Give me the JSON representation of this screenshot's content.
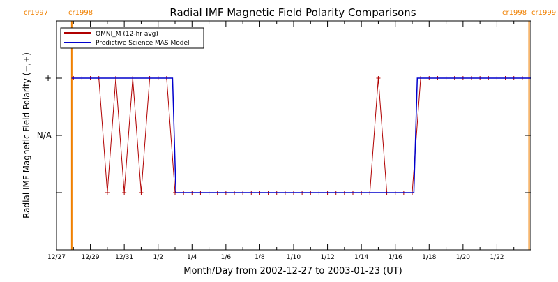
{
  "chart_data": {
    "type": "line",
    "title": "Radial IMF Magnetic Field Polarity Comparisons",
    "xlabel": "Month/Day from 2002-12-27 to 2003-01-23 (UT)",
    "ylabel": "Radial IMF Magnetic Field Polarity (−,+)",
    "x_unit": "days",
    "xlim": [
      0,
      28
    ],
    "ylim": [
      -2,
      2
    ],
    "y_ticks": [
      {
        "value": 1,
        "label": "+"
      },
      {
        "value": 0,
        "label": "N/A"
      },
      {
        "value": -1,
        "label": "–"
      }
    ],
    "x_ticks": [
      {
        "value": 0,
        "label": "12/27"
      },
      {
        "value": 2,
        "label": "12/29"
      },
      {
        "value": 4,
        "label": "12/31"
      },
      {
        "value": 6,
        "label": "1/2"
      },
      {
        "value": 8,
        "label": "1/4"
      },
      {
        "value": 10,
        "label": "1/6"
      },
      {
        "value": 12,
        "label": "1/8"
      },
      {
        "value": 14,
        "label": "1/10"
      },
      {
        "value": 16,
        "label": "1/12"
      },
      {
        "value": 18,
        "label": "1/14"
      },
      {
        "value": 20,
        "label": "1/16"
      },
      {
        "value": 22,
        "label": "1/18"
      },
      {
        "value": 24,
        "label": "1/20"
      },
      {
        "value": 26,
        "label": "1/22"
      }
    ],
    "carrington_markers": [
      {
        "x": 0.9,
        "left_label": "cr1997",
        "right_label": "cr1998"
      },
      {
        "x": 27.9,
        "left_label": "cr1998",
        "right_label": "cr1999"
      }
    ],
    "legend": {
      "position": "top-left"
    },
    "series": [
      {
        "name": "OMNI_M (12-hr avg)",
        "color": "#b00000",
        "markers": true,
        "x": [
          1.0,
          1.5,
          2.0,
          2.5,
          3.0,
          3.5,
          4.0,
          4.5,
          5.0,
          5.5,
          6.0,
          6.5,
          7.0,
          7.5,
          8.0,
          8.5,
          9.0,
          9.5,
          10.0,
          10.5,
          11.0,
          11.5,
          12.0,
          12.5,
          13.0,
          13.5,
          14.0,
          14.5,
          15.0,
          15.5,
          16.0,
          16.5,
          17.0,
          17.5,
          18.0,
          18.5,
          19.0,
          19.5,
          20.0,
          20.5,
          21.0,
          21.5,
          22.0,
          22.5,
          23.0,
          23.5,
          24.0,
          24.5,
          25.0,
          25.5,
          26.0,
          26.5,
          27.0,
          27.5
        ],
        "y": [
          1,
          1,
          1,
          1,
          -1,
          1,
          -1,
          1,
          -1,
          1,
          1,
          1,
          -1,
          -1,
          -1,
          -1,
          -1,
          -1,
          -1,
          -1,
          -1,
          -1,
          -1,
          -1,
          -1,
          -1,
          -1,
          -1,
          -1,
          -1,
          -1,
          -1,
          -1,
          -1,
          -1,
          -1,
          1,
          -1,
          -1,
          -1,
          -1,
          1,
          1,
          1,
          1,
          1,
          1,
          1,
          1,
          1,
          1,
          1,
          1,
          1
        ]
      },
      {
        "name": "Predictive Science MAS Model",
        "color": "#0000cc",
        "markers": false,
        "x": [
          0.9,
          6.85,
          7.05,
          21.1,
          21.3,
          28.0
        ],
        "y": [
          1,
          1,
          -1,
          -1,
          1,
          1
        ]
      }
    ]
  }
}
